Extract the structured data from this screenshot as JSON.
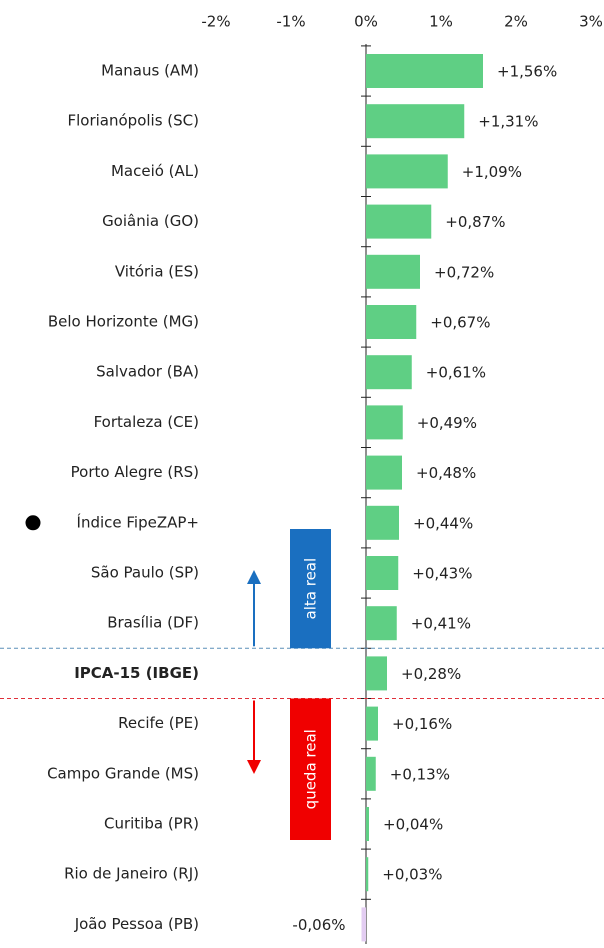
{
  "chart_data": {
    "type": "barh",
    "categories": [
      "Manaus (AM)",
      "Florianópolis (SC)",
      "Maceió (AL)",
      "Goiânia (GO)",
      "Vitória (ES)",
      "Belo Horizonte (MG)",
      "Salvador (BA)",
      "Fortaleza (CE)",
      "Porto Alegre (RS)",
      "Índice FipeZAP+",
      "São Paulo (SP)",
      "Brasília (DF)",
      "IPCA-15 (IBGE)",
      "Recife (PE)",
      "Campo Grande (MS)",
      "Curitiba (PR)",
      "Rio de Janeiro (RJ)",
      "João Pessoa (PB)"
    ],
    "values": [
      1.56,
      1.31,
      1.09,
      0.87,
      0.72,
      0.67,
      0.61,
      0.49,
      0.48,
      0.44,
      0.43,
      0.41,
      0.28,
      0.16,
      0.13,
      0.04,
      0.03,
      -0.06
    ],
    "value_labels": [
      "+1,56%",
      "+1,31%",
      "+1,09%",
      "+0,87%",
      "+0,72%",
      "+0,67%",
      "+0,61%",
      "+0,49%",
      "+0,48%",
      "+0,44%",
      "+0,43%",
      "+0,41%",
      "+0,28%",
      "+0,16%",
      "+0,13%",
      "+0,04%",
      "+0,03%",
      "-0,06%"
    ],
    "color": "#5fcf84",
    "negative_color": "#e3cdf2",
    "xlim": [
      -2,
      3
    ],
    "xticks": [
      {
        "value": -2,
        "label": "-2%"
      },
      {
        "value": -1,
        "label": "-1%"
      },
      {
        "value": 0,
        "label": "0%"
      },
      {
        "value": 1,
        "label": "1%"
      },
      {
        "value": 2,
        "label": "2%"
      },
      {
        "value": 3,
        "label": "3%"
      }
    ],
    "grid": false,
    "bold_index": 12,
    "marker_index": 9,
    "annotations": [
      {
        "text": "alta real",
        "color": "#1a6fc0"
      },
      {
        "text": "queda real",
        "color": "#f00000"
      }
    ]
  }
}
